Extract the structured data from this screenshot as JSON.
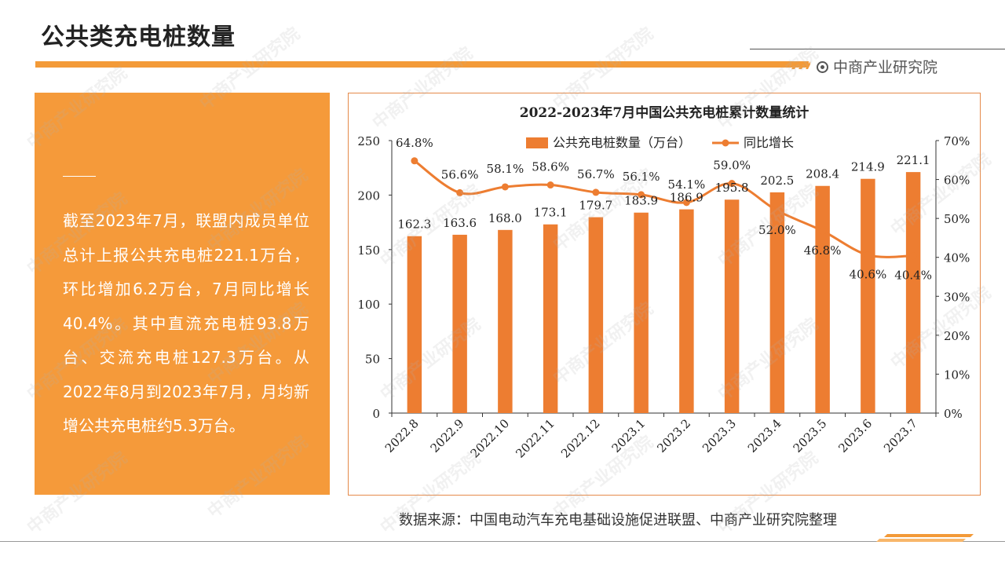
{
  "page": {
    "title": "公共类充电桩数量",
    "brand": "中商产业研究院",
    "watermark": "中商产业研究院"
  },
  "info_panel": {
    "text": "截至2023年7月，联盟内成员单位总计上报公共充电桩221.1万台，环比增加6.2万台，7月同比增长40.4%。其中直流充电桩93.8万台、交流充电桩127.3万台。从2022年8月到2023年7月，月均新增公共充电桩约5.3万台。"
  },
  "source": "数据来源：中国电动汽车充电基础设施促进联盟、中商产业研究院整理",
  "colors": {
    "accent": "#F39A38",
    "bar": "#ED7D31",
    "line": "#ED7D31",
    "panel": "#F59A3A"
  },
  "chart_data": {
    "type": "bar",
    "title": "2022-2023年7月中国公共充电桩累计数量统计",
    "categories": [
      "2022.8",
      "2022.9",
      "2022.10",
      "2022.11",
      "2022.12",
      "2023.1",
      "2023.2",
      "2023.3",
      "2023.4",
      "2023.5",
      "2023.6",
      "2023.7"
    ],
    "series": [
      {
        "name": "公共充电桩数量（万台）",
        "type": "bar",
        "axis": "left",
        "values": [
          162.3,
          163.6,
          168.0,
          173.1,
          179.7,
          183.9,
          186.9,
          195.8,
          202.5,
          208.4,
          214.9,
          221.1
        ],
        "labels": [
          "162.3",
          "163.6",
          "168.0",
          "173.1",
          "179.7",
          "183.9",
          "186.9",
          "195.8",
          "202.5",
          "208.4",
          "214.9",
          "221.1"
        ]
      },
      {
        "name": "同比增长",
        "type": "line",
        "axis": "right",
        "values": [
          64.8,
          56.6,
          58.1,
          58.6,
          56.7,
          56.1,
          54.1,
          59.0,
          52.0,
          46.8,
          40.6,
          40.4
        ],
        "labels": [
          "64.8%",
          "56.6%",
          "58.1%",
          "58.6%",
          "56.7%",
          "56.1%",
          "54.1%",
          "59.0%",
          "52.0%",
          "46.8%",
          "40.6%",
          "40.4%"
        ]
      }
    ],
    "y_left": {
      "min": 0,
      "max": 250,
      "ticks": [
        "0",
        "50",
        "100",
        "150",
        "200",
        "250"
      ]
    },
    "y_right": {
      "min": 0,
      "max": 70,
      "ticks": [
        "0%",
        "10%",
        "20%",
        "30%",
        "40%",
        "50%",
        "60%",
        "70%"
      ]
    },
    "legend_position": "top",
    "grid": false
  }
}
